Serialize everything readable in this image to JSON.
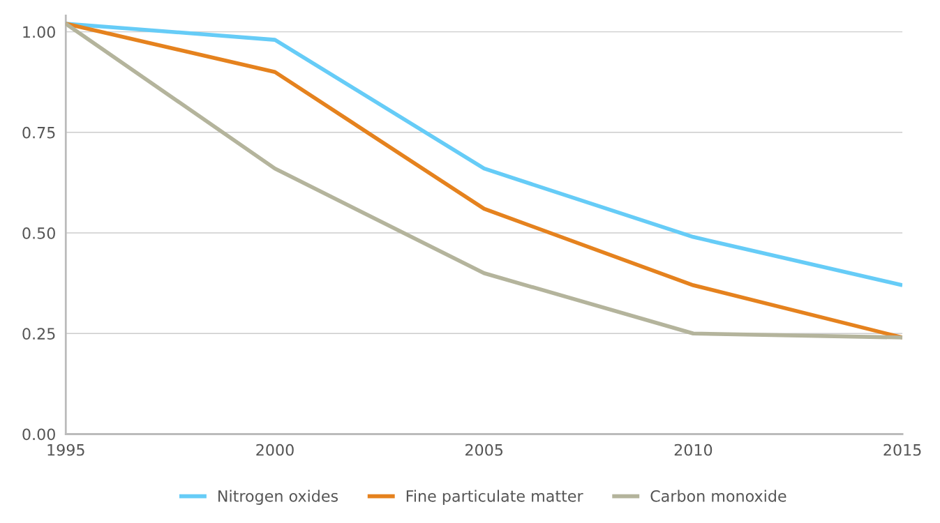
{
  "chart_data": {
    "type": "line",
    "x": [
      1995,
      2000,
      2005,
      2010,
      2015
    ],
    "series": [
      {
        "name": "Nitrogen oxides",
        "color": "#66ccf7",
        "values": [
          1.02,
          0.98,
          0.66,
          0.49,
          0.37
        ]
      },
      {
        "name": "Fine particulate matter",
        "color": "#e5821e",
        "values": [
          1.02,
          0.9,
          0.56,
          0.37,
          0.24
        ]
      },
      {
        "name": "Carbon monoxide",
        "color": "#b4b49c",
        "values": [
          1.02,
          0.66,
          0.4,
          0.25,
          0.24
        ]
      }
    ],
    "xlim": [
      1995,
      2015
    ],
    "xticks": [
      1995,
      2000,
      2005,
      2010,
      2015
    ],
    "ylim": [
      0,
      1.04
    ],
    "yticks": [
      {
        "value": 0,
        "label": "0.00"
      },
      {
        "value": 0.25,
        "label": "0.25"
      },
      {
        "value": 0.5,
        "label": "0.50"
      },
      {
        "value": 0.75,
        "label": "0.75"
      },
      {
        "value": 1.0,
        "label": "1.00"
      }
    ],
    "grid": "y",
    "legend": "bottom",
    "marker": "none",
    "line_style": "solid"
  }
}
